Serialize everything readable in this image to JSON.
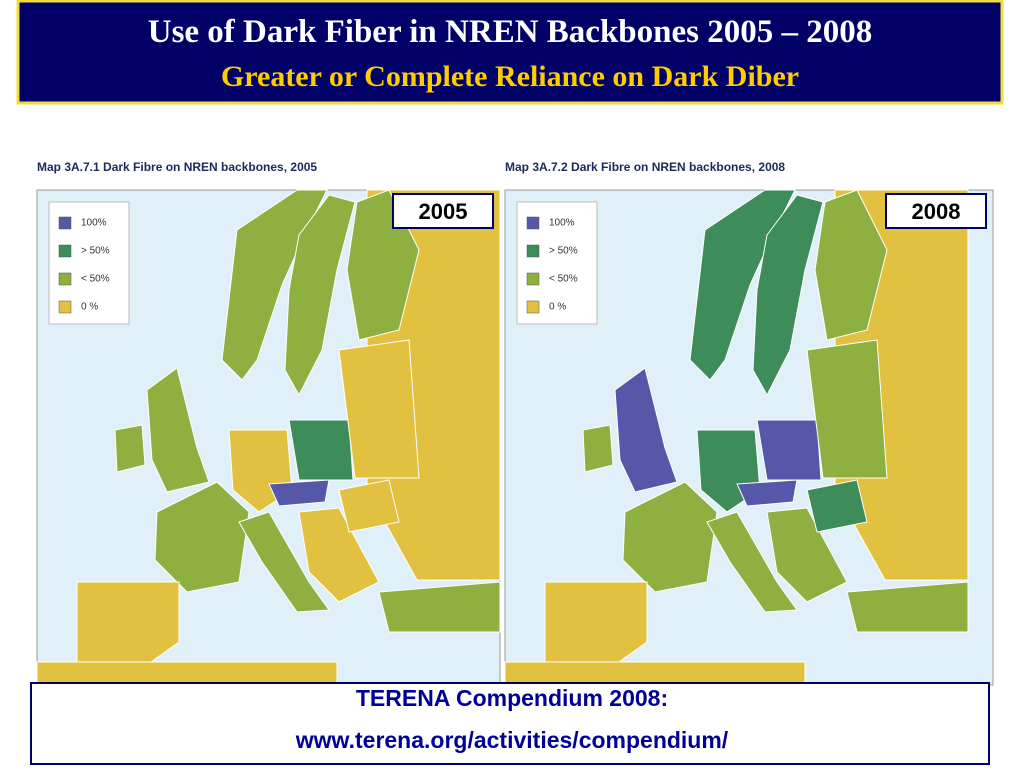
{
  "header": {
    "title": "Use of Dark Fiber in NREN Backbones 2005 – 2008",
    "subtitle": "Greater or Complete Reliance on Dark Diber"
  },
  "maps": [
    {
      "caption": "Map 3A.7.1 Dark Fibre on NREN backbones, 2005",
      "year": "2005",
      "legend": [
        "100%",
        "> 50%",
        "< 50%",
        "0 %"
      ]
    },
    {
      "caption": "Map 3A.7.2 Dark Fibre on NREN backbones, 2008",
      "year": "2008",
      "legend": [
        "100%",
        "> 50%",
        "< 50%",
        "0 %"
      ]
    }
  ],
  "footer": {
    "line1": "TERENA Compendium 2008:",
    "line2": "www.terena.org/activities/compendium/"
  }
}
